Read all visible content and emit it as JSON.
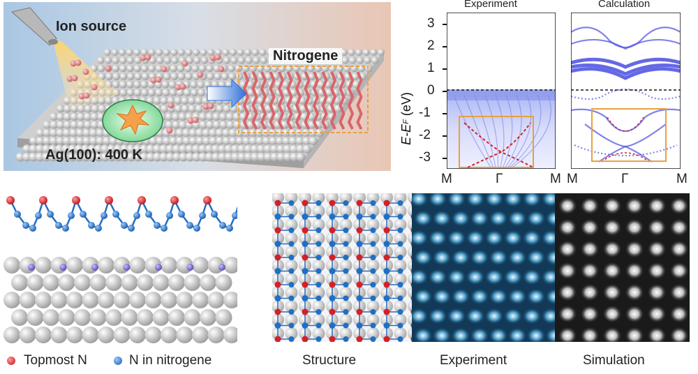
{
  "panel_a": {
    "ion_source_label": "Ion source",
    "nitrogene_label": "Nitrogene",
    "substrate_label": "Ag(100): 400 K"
  },
  "band_panels": {
    "experiment_title": "Experiment",
    "calculation_title": "Calculation",
    "ylabel_main": "E-E",
    "ylabel_sub": "F",
    "ylabel_unit": "(eV)",
    "y_ticks": [
      "3",
      "2",
      "1",
      "0",
      "-1",
      "-2",
      "-3"
    ],
    "x_ticks": [
      "M",
      "Γ",
      "M"
    ],
    "calc_x_ticks": [
      "M",
      "Γ",
      "M"
    ]
  },
  "side_view": {
    "legend_topmost": "Topmost N",
    "legend_nitrogene": "N in nitrogene"
  },
  "stm_panels": {
    "structure_label": "Structure",
    "experiment_label": "Experiment",
    "simulation_label": "Simulation"
  },
  "colors": {
    "topmost_n": "#d42027",
    "nitrogene_n": "#1f6fc4",
    "ag_atom": "#d9d9d9",
    "band_blue": "#4a4ee0",
    "highlight_box": "#e8a040"
  }
}
